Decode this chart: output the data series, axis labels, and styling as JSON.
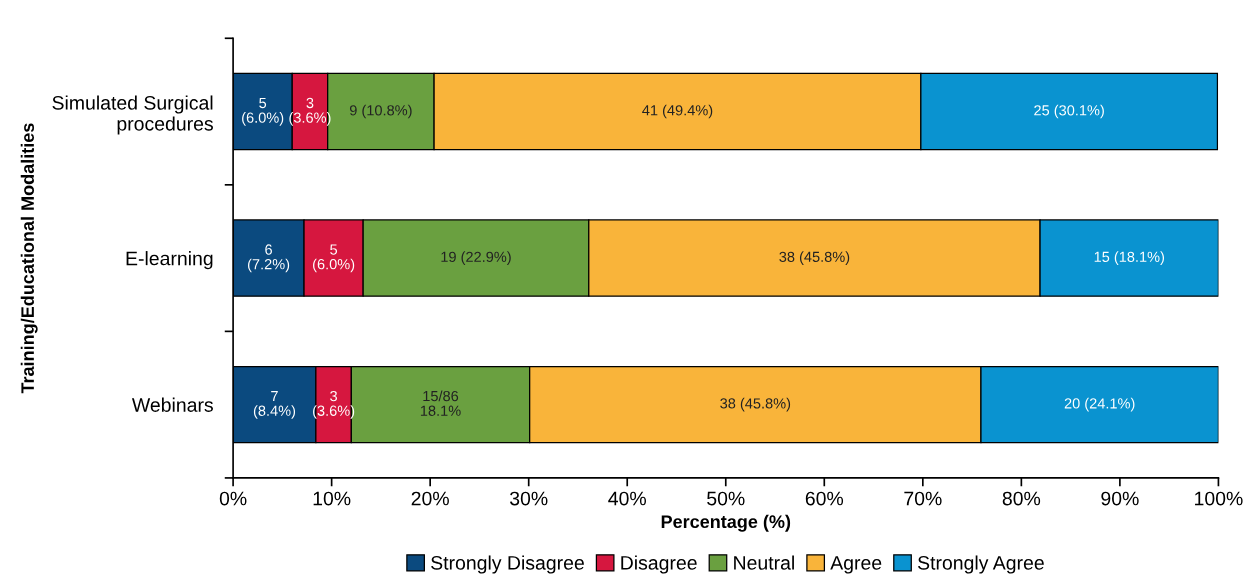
{
  "chart_data": {
    "type": "bar",
    "orientation": "horizontal",
    "stacked": true,
    "ylabel": "Training/Educational Modalities",
    "xlabel": "Percentage (%)",
    "categories": [
      "Simulated Surgical\nprocedures",
      "E-learning",
      "Webinars"
    ],
    "series": [
      {
        "name": "Strongly Disagree",
        "color": "#0b4a7f",
        "values": [
          6.0,
          7.2,
          8.4
        ],
        "value_labels": [
          "5\n(6.0%)",
          "6\n(7.2%)",
          "7\n(8.4%)"
        ]
      },
      {
        "name": "Disagree",
        "color": "#d6173f",
        "values": [
          3.6,
          6.0,
          3.6
        ],
        "value_labels": [
          "3\n(3.6%)",
          "5\n(6.0%)",
          "3\n(3.6%)"
        ]
      },
      {
        "name": "Neutral",
        "color": "#6aa040",
        "values": [
          10.8,
          22.9,
          18.1
        ],
        "value_labels": [
          "9 (10.8%)",
          "19 (22.9%)",
          "15/86\n18.1%"
        ]
      },
      {
        "name": "Agree",
        "color": "#f9b43a",
        "values": [
          49.4,
          45.8,
          45.8
        ],
        "value_labels": [
          "41 (49.4%)",
          "38 (45.8%)",
          "38 (45.8%)"
        ]
      },
      {
        "name": "Strongly Agree",
        "color": "#0a93d0",
        "values": [
          30.1,
          18.1,
          24.1
        ],
        "value_labels": [
          "25 (30.1%)",
          "15 (18.1%)",
          "20 (24.1%)"
        ]
      }
    ],
    "xlim": [
      0,
      100
    ],
    "xticks": [
      {
        "value": 0,
        "label": "0%"
      },
      {
        "value": 10,
        "label": "10%"
      },
      {
        "value": 20,
        "label": "20%"
      },
      {
        "value": 30,
        "label": "30%"
      },
      {
        "value": 40,
        "label": "40%"
      },
      {
        "value": 50,
        "label": "50%"
      },
      {
        "value": 60,
        "label": "60%"
      },
      {
        "value": 70,
        "label": "70%"
      },
      {
        "value": 80,
        "label": "80%"
      },
      {
        "value": 90,
        "label": "90%"
      },
      {
        "value": 100,
        "label": "100%"
      }
    ],
    "grid": false,
    "legend": "bottom"
  }
}
